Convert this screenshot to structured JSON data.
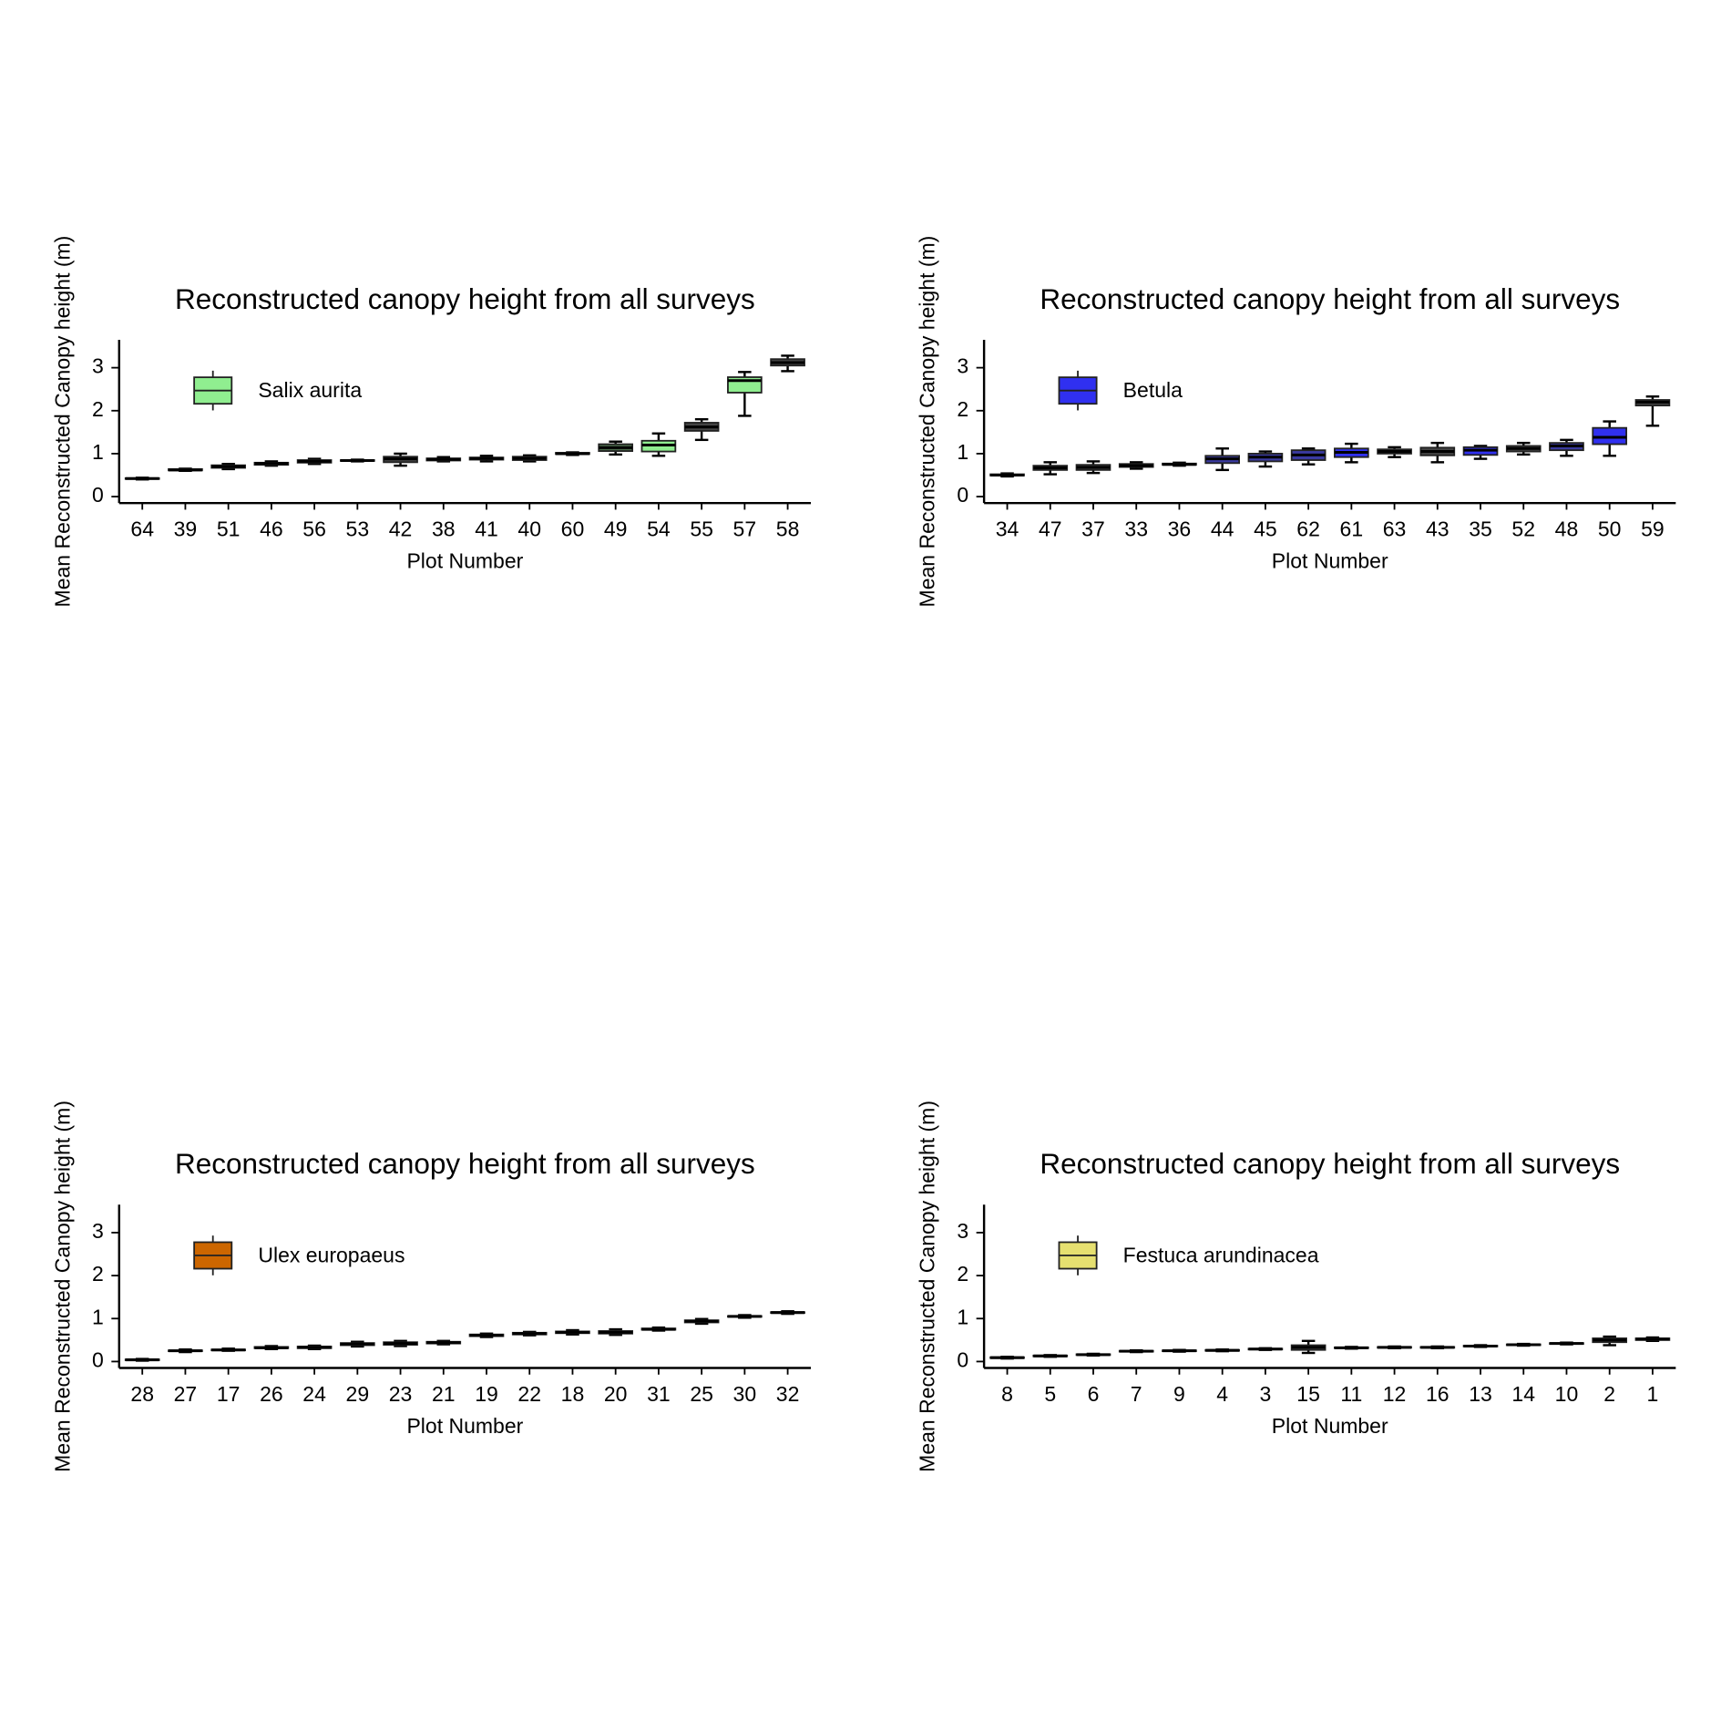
{
  "chart_data": [
    {
      "type": "box",
      "title": "Reconstructed canopy height from all surveys",
      "xlabel": "Plot Number",
      "ylabel": "Mean Reconstructed Canopy height (m)",
      "name": "Salix aurita",
      "color": "#90ee90",
      "legend": "upper left",
      "categories": [
        "64",
        "39",
        "51",
        "46",
        "56",
        "53",
        "42",
        "38",
        "41",
        "40",
        "60",
        "49",
        "54",
        "55",
        "57",
        "58"
      ],
      "box_colors": [
        "#444444",
        "#444444",
        "#444444",
        "#444444",
        "#444444",
        "#444444",
        "#444444",
        "#444444",
        "#444444",
        "#444444",
        "#444444",
        "#4a6a4a",
        "#90ee90",
        "#444444",
        "#90ee90",
        "#444444"
      ],
      "min": [
        0.4,
        0.6,
        0.64,
        0.72,
        0.76,
        0.82,
        0.72,
        0.82,
        0.82,
        0.82,
        0.97,
        0.98,
        0.95,
        1.32,
        1.88,
        2.92
      ],
      "q1": [
        0.41,
        0.61,
        0.67,
        0.74,
        0.79,
        0.83,
        0.8,
        0.84,
        0.86,
        0.85,
        0.99,
        1.06,
        1.05,
        1.53,
        2.42,
        3.05
      ],
      "median": [
        0.42,
        0.62,
        0.7,
        0.77,
        0.82,
        0.84,
        0.88,
        0.87,
        0.89,
        0.89,
        1.0,
        1.14,
        1.2,
        1.62,
        2.7,
        3.12
      ],
      "q3": [
        0.43,
        0.64,
        0.73,
        0.79,
        0.85,
        0.85,
        0.93,
        0.89,
        0.91,
        0.93,
        1.02,
        1.22,
        1.3,
        1.72,
        2.78,
        3.2
      ],
      "max": [
        0.44,
        0.65,
        0.76,
        0.82,
        0.88,
        0.86,
        1.0,
        0.92,
        0.95,
        0.96,
        1.03,
        1.28,
        1.47,
        1.8,
        2.9,
        3.28
      ],
      "ylim": [
        -0.15,
        3.65
      ],
      "yticks": [
        0,
        1,
        2,
        3
      ]
    },
    {
      "type": "box",
      "title": "Reconstructed canopy height from all surveys",
      "xlabel": "Plot Number",
      "ylabel": "Mean Reconstructed Canopy height (m)",
      "name": "Betula",
      "color": "#3030f0",
      "legend": "upper left",
      "categories": [
        "34",
        "47",
        "37",
        "33",
        "36",
        "44",
        "45",
        "62",
        "61",
        "63",
        "43",
        "35",
        "52",
        "48",
        "50",
        "59"
      ],
      "box_colors": [
        "#444444",
        "#444444",
        "#444444",
        "#444444",
        "#444444",
        "#3a3aa0",
        "#3a3aa0",
        "#3a3aa0",
        "#3030f0",
        "#444444",
        "#444444",
        "#3030f0",
        "#444444",
        "#3a3aa0",
        "#3030f0",
        "#444444"
      ],
      "min": [
        0.47,
        0.52,
        0.55,
        0.65,
        0.72,
        0.62,
        0.7,
        0.75,
        0.8,
        0.92,
        0.8,
        0.88,
        0.98,
        0.95,
        0.95,
        1.65
      ],
      "q1": [
        0.49,
        0.62,
        0.62,
        0.69,
        0.74,
        0.78,
        0.82,
        0.85,
        0.92,
        1.0,
        0.96,
        0.97,
        1.05,
        1.08,
        1.22,
        2.12
      ],
      "median": [
        0.5,
        0.67,
        0.68,
        0.72,
        0.75,
        0.88,
        0.92,
        0.97,
        1.03,
        1.05,
        1.05,
        1.08,
        1.12,
        1.18,
        1.38,
        2.2
      ],
      "q3": [
        0.52,
        0.72,
        0.74,
        0.76,
        0.77,
        0.95,
        1.0,
        1.08,
        1.12,
        1.1,
        1.14,
        1.15,
        1.18,
        1.25,
        1.6,
        2.25
      ],
      "max": [
        0.54,
        0.8,
        0.82,
        0.8,
        0.79,
        1.12,
        1.05,
        1.12,
        1.23,
        1.15,
        1.25,
        1.18,
        1.25,
        1.32,
        1.75,
        2.33
      ],
      "ylim": [
        -0.15,
        3.65
      ],
      "yticks": [
        0,
        1,
        2,
        3
      ]
    },
    {
      "type": "box",
      "title": "Reconstructed canopy height from all surveys",
      "xlabel": "Plot Number",
      "ylabel": "Mean Reconstructed Canopy height (m)",
      "name": "Ulex europaeus",
      "color": "#cc6600",
      "legend": "upper left",
      "categories": [
        "28",
        "27",
        "17",
        "26",
        "24",
        "29",
        "23",
        "21",
        "19",
        "22",
        "18",
        "20",
        "31",
        "25",
        "30",
        "32"
      ],
      "box_colors": [
        "#444444",
        "#444444",
        "#444444",
        "#444444",
        "#444444",
        "#444444",
        "#444444",
        "#444444",
        "#444444",
        "#444444",
        "#444444",
        "#444444",
        "#444444",
        "#444444",
        "#444444",
        "#444444"
      ],
      "min": [
        0.02,
        0.22,
        0.25,
        0.29,
        0.29,
        0.35,
        0.36,
        0.4,
        0.57,
        0.61,
        0.63,
        0.62,
        0.72,
        0.88,
        1.02,
        1.11
      ],
      "q1": [
        0.03,
        0.24,
        0.26,
        0.31,
        0.31,
        0.38,
        0.39,
        0.42,
        0.59,
        0.63,
        0.66,
        0.65,
        0.74,
        0.91,
        1.04,
        1.13
      ],
      "median": [
        0.04,
        0.25,
        0.27,
        0.32,
        0.33,
        0.41,
        0.42,
        0.44,
        0.61,
        0.65,
        0.68,
        0.68,
        0.75,
        0.94,
        1.05,
        1.14
      ],
      "q3": [
        0.05,
        0.26,
        0.28,
        0.34,
        0.35,
        0.43,
        0.45,
        0.46,
        0.63,
        0.67,
        0.7,
        0.71,
        0.77,
        0.96,
        1.06,
        1.15
      ],
      "max": [
        0.06,
        0.28,
        0.3,
        0.36,
        0.37,
        0.46,
        0.48,
        0.48,
        0.65,
        0.69,
        0.73,
        0.75,
        0.79,
        0.99,
        1.08,
        1.17
      ],
      "ylim": [
        -0.15,
        3.65
      ],
      "yticks": [
        0,
        1,
        2,
        3
      ]
    },
    {
      "type": "box",
      "title": "Reconstructed canopy height from all surveys",
      "xlabel": "Plot Number",
      "ylabel": "Mean Reconstructed Canopy height (m)",
      "name": "Festuca arundinacea",
      "color": "#e6e070",
      "legend": "upper left",
      "categories": [
        "8",
        "5",
        "6",
        "7",
        "9",
        "4",
        "3",
        "15",
        "11",
        "12",
        "16",
        "13",
        "14",
        "10",
        "2",
        "1"
      ],
      "box_colors": [
        "#444444",
        "#444444",
        "#444444",
        "#444444",
        "#444444",
        "#444444",
        "#444444",
        "#444444",
        "#444444",
        "#444444",
        "#444444",
        "#444444",
        "#444444",
        "#444444",
        "#444444",
        "#444444"
      ],
      "min": [
        0.07,
        0.11,
        0.14,
        0.22,
        0.23,
        0.24,
        0.27,
        0.2,
        0.3,
        0.31,
        0.31,
        0.34,
        0.37,
        0.4,
        0.38,
        0.48
      ],
      "q1": [
        0.08,
        0.12,
        0.15,
        0.23,
        0.24,
        0.25,
        0.28,
        0.27,
        0.31,
        0.32,
        0.32,
        0.35,
        0.38,
        0.41,
        0.45,
        0.5
      ],
      "median": [
        0.09,
        0.13,
        0.16,
        0.24,
        0.25,
        0.26,
        0.29,
        0.33,
        0.32,
        0.33,
        0.33,
        0.36,
        0.39,
        0.42,
        0.5,
        0.52
      ],
      "q3": [
        0.1,
        0.14,
        0.17,
        0.25,
        0.26,
        0.27,
        0.3,
        0.38,
        0.33,
        0.34,
        0.34,
        0.37,
        0.4,
        0.43,
        0.54,
        0.54
      ],
      "max": [
        0.11,
        0.15,
        0.18,
        0.26,
        0.27,
        0.28,
        0.31,
        0.48,
        0.34,
        0.35,
        0.35,
        0.38,
        0.41,
        0.44,
        0.58,
        0.56
      ],
      "ylim": [
        -0.15,
        3.65
      ],
      "yticks": [
        0,
        1,
        2,
        3
      ]
    }
  ]
}
